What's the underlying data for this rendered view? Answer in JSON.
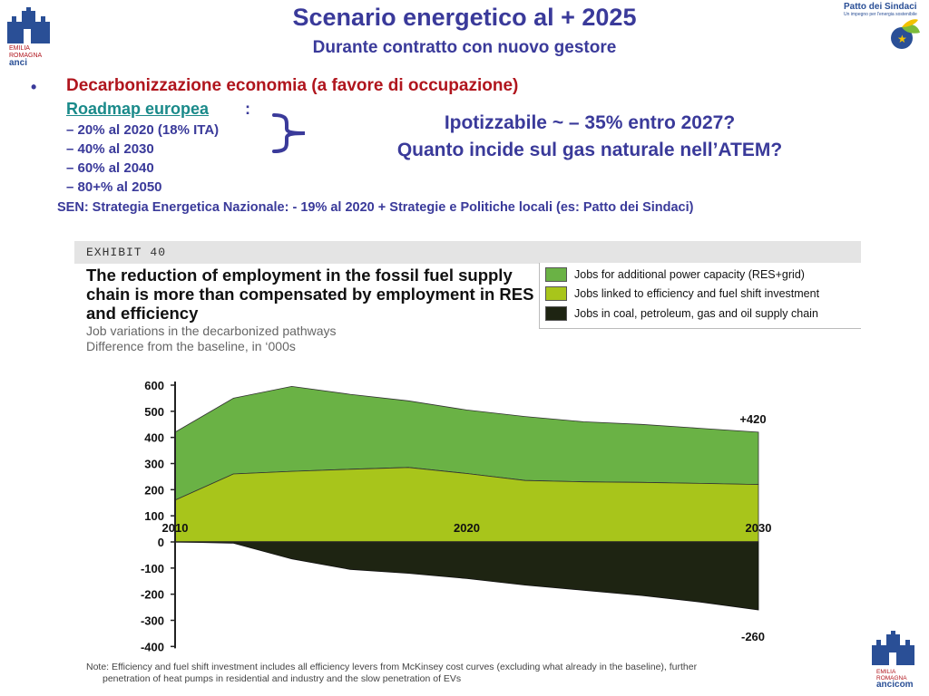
{
  "slide": {
    "title": "Scenario energetico al + 2025",
    "subtitle": "Durante contratto con nuovo gestore",
    "bullet": "Decarbonizzazione economia (a favore di occupazione)",
    "roadmap_label": "Roadmap europea",
    "roadmap_colon": ":",
    "roadmap_items": [
      "– 20% al 2020 (18% ITA)",
      "– 40% al 2030",
      "– 60% al 2040",
      "– 80+% al 2050"
    ],
    "ipotesi_line1": "Ipotizzabile ~ – 35% entro 2027?",
    "ipotesi_line2": "Quanto incide sul gas naturale nell’ATEM?",
    "sen_line": "SEN: Strategia Energetica Nazionale: - 19% al 2020 + Strategie e Politiche locali (es: Patto dei Sindaci)"
  },
  "logos": {
    "left_logo_lines": [
      "EMILIA",
      "ROMAGNA",
      "anci"
    ],
    "bottom_right_logo_lines": [
      "EMILIA",
      "ROMAGNA",
      "ancicom"
    ],
    "patto_title": "Patto dei Sindaci",
    "patto_tagline": "Un impegno per l'energia sostenibile"
  },
  "exhibit": {
    "label": "EXHIBIT 40",
    "note_line1": "Note: Efficiency and fuel shift investment includes all efficiency levers from McKinsey cost curves (excluding what already in the baseline), further",
    "note_line2": "penetration of heat pumps in residential and industry and the slow penetration of EVs"
  },
  "colors": {
    "res_grid": "#6ab245",
    "efficiency": "#a8c51b",
    "fossil": "#1e2412",
    "title_blue": "#3a3a9a",
    "bullet_red": "#b0151d",
    "link_teal": "#1a8a8a"
  },
  "chart_data": {
    "type": "area",
    "title": "The reduction of employment in the fossil fuel supply chain is more than compensated by employment in RES and efficiency",
    "subtitle_lines": [
      "Job variations in the decarbonized pathways",
      "Difference from the baseline, in ‘000s"
    ],
    "x": [
      2010,
      2012,
      2014,
      2016,
      2018,
      2020,
      2022,
      2024,
      2026,
      2028,
      2030
    ],
    "series": [
      {
        "name": "Jobs for additional power capacity (RES+grid)",
        "values": [
          420,
          550,
          595,
          565,
          540,
          505,
          480,
          460,
          450,
          435,
          420
        ],
        "stacked_top": true
      },
      {
        "name": "Jobs linked to efficiency and fuel shift investment",
        "values": [
          160,
          260,
          270,
          278,
          285,
          262,
          235,
          230,
          228,
          224,
          220
        ]
      },
      {
        "name": "Jobs in coal, petroleum, gas and oil supply chain",
        "values": [
          0,
          -5,
          -65,
          -105,
          -120,
          -140,
          -165,
          -185,
          -205,
          -230,
          -260
        ]
      }
    ],
    "xlabel": "",
    "ylabel": "",
    "ylim": [
      -400,
      600
    ],
    "yticks": [
      600,
      500,
      400,
      300,
      200,
      100,
      0,
      -100,
      -200,
      -300,
      -400
    ],
    "xtick_labels": [
      "2010",
      "2020",
      "2030"
    ],
    "annotations": [
      "+420",
      "-260"
    ],
    "legend_position": "top-right",
    "grid": false
  }
}
